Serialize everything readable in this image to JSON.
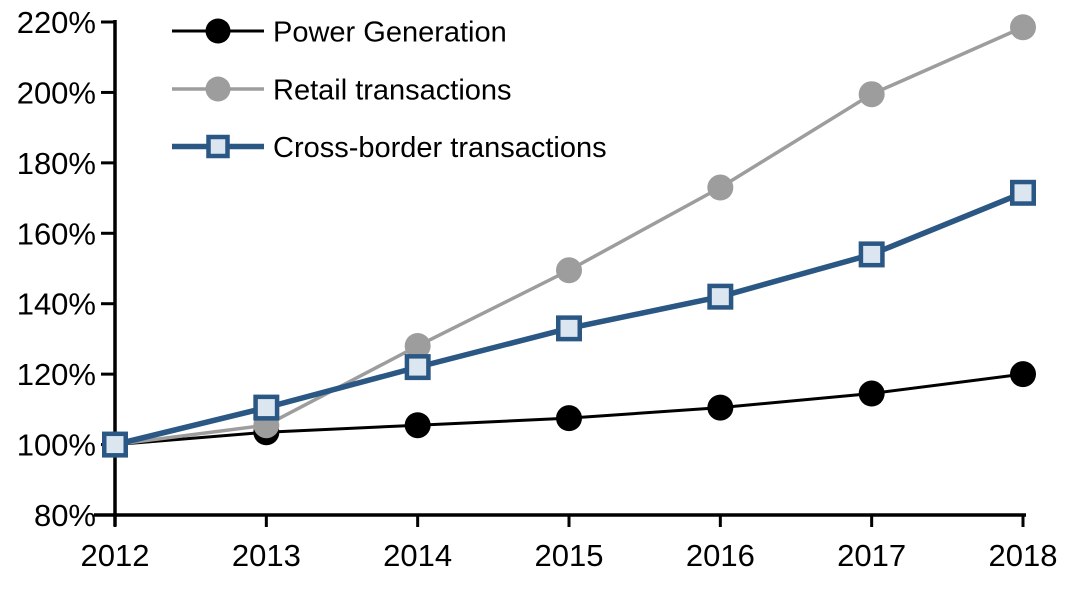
{
  "chart_data": {
    "type": "line",
    "title": "",
    "xlabel": "",
    "ylabel": "",
    "x": [
      2012,
      2013,
      2014,
      2015,
      2016,
      2017,
      2018
    ],
    "y_axis": {
      "min": 80,
      "max": 220,
      "step": 20,
      "format": "percent",
      "tick_labels": [
        "80%",
        "100%",
        "120%",
        "140%",
        "160%",
        "180%",
        "200%",
        "220%"
      ]
    },
    "grid": false,
    "legend_position": "top-left",
    "series": [
      {
        "name": "Power Generation",
        "color": "#000000",
        "marker": "circle",
        "marker_fill": "#000000",
        "line_width": 3,
        "values": [
          100,
          103.5,
          105.5,
          107.5,
          110.5,
          114.5,
          120
        ]
      },
      {
        "name": "Retail transactions",
        "color": "#9d9d9d",
        "marker": "circle",
        "marker_fill": "#9d9d9d",
        "line_width": 3.5,
        "values": [
          100,
          105.5,
          128,
          149.5,
          173,
          199.5,
          218.5
        ]
      },
      {
        "name": "Cross-border transactions",
        "color": "#2a5783",
        "marker": "square",
        "marker_fill": "#dce6f1",
        "line_width": 5.5,
        "values": [
          100,
          110.5,
          122,
          133,
          142,
          154,
          171.5
        ]
      }
    ]
  },
  "colors": {
    "background": "#ffffff",
    "axis": "#000000",
    "text": "#000000",
    "cross_border_blue": "#2a5783",
    "cross_border_fill": "#dce6f1",
    "retail_gray": "#9d9d9d",
    "power_black": "#000000"
  }
}
